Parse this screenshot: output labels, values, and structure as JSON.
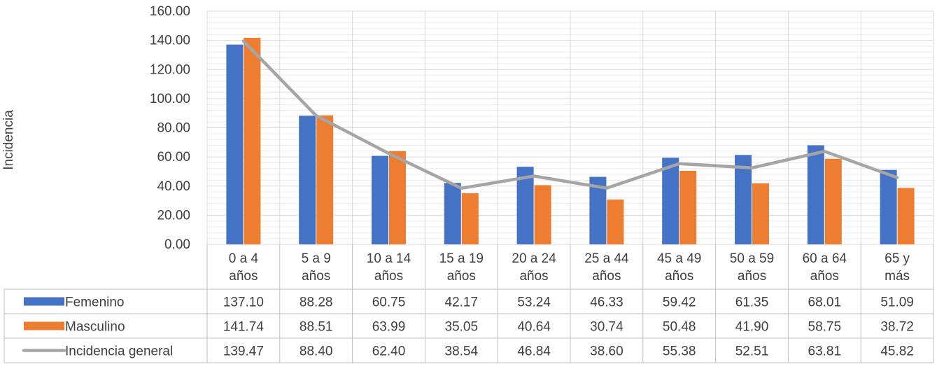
{
  "chart_data": {
    "type": "bar",
    "title": "",
    "xlabel": "",
    "ylabel": "Incidencia",
    "ylim": [
      0,
      160
    ],
    "y_ticks": [
      "0.00",
      "20.00",
      "40.00",
      "60.00",
      "80.00",
      "100.00",
      "120.00",
      "140.00",
      "160.00"
    ],
    "categories": [
      [
        "0 a 4",
        "años"
      ],
      [
        "5 a 9",
        "años"
      ],
      [
        "10 a 14",
        "años"
      ],
      [
        "15 a 19",
        "años"
      ],
      [
        "20 a 24",
        "años"
      ],
      [
        "25 a 44",
        "años"
      ],
      [
        "45 a 49",
        "años"
      ],
      [
        "50 a 59",
        "años"
      ],
      [
        "60 a 64",
        "años"
      ],
      [
        "65 y",
        "más"
      ]
    ],
    "grid": true,
    "legend": "data-table",
    "series": [
      {
        "name": "Femenino",
        "type": "bar",
        "color": "#4472C4",
        "values": [
          137.1,
          88.28,
          60.75,
          42.17,
          53.24,
          46.33,
          59.42,
          61.35,
          68.01,
          51.09
        ],
        "labels": [
          "137.10",
          "88.28",
          "60.75",
          "42.17",
          "53.24",
          "46.33",
          "59.42",
          "61.35",
          "68.01",
          "51.09"
        ]
      },
      {
        "name": "Masculino",
        "type": "bar",
        "color": "#ED7D31",
        "values": [
          141.74,
          88.51,
          63.99,
          35.05,
          40.64,
          30.74,
          50.48,
          41.9,
          58.75,
          38.72
        ],
        "labels": [
          "141.74",
          "88.51",
          "63.99",
          "35.05",
          "40.64",
          "30.74",
          "50.48",
          "41.90",
          "58.75",
          "38.72"
        ]
      },
      {
        "name": "Incidencia general",
        "type": "line",
        "color": "#A5A5A5",
        "values": [
          139.47,
          88.4,
          62.4,
          38.54,
          46.84,
          38.6,
          55.38,
          52.51,
          63.81,
          45.82
        ],
        "labels": [
          "139.47",
          "88.40",
          "62.40",
          "38.54",
          "46.84",
          "38.60",
          "55.38",
          "52.51",
          "63.81",
          "45.82"
        ]
      }
    ]
  }
}
